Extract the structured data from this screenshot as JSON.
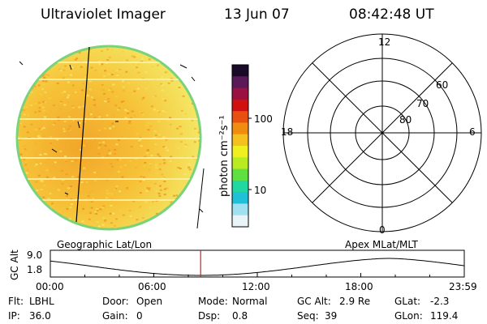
{
  "header": {
    "instrument": "Ultraviolet Imager",
    "date": "13 Jun 07",
    "time": "08:42:48 UT"
  },
  "colorbar": {
    "unit_label": "photon cm⁻²s⁻¹",
    "ticks": [
      "100",
      "10"
    ],
    "colors": [
      "#1a0a2a",
      "#5a1a5a",
      "#9a1040",
      "#d01010",
      "#e85010",
      "#f08c10",
      "#f6c020",
      "#f0f020",
      "#b8ec20",
      "#60e040",
      "#20d8a0",
      "#20c0d8",
      "#a0e0f0",
      "#e8f4f8"
    ]
  },
  "image_panel": {
    "label": "Geographic Lat/Lon",
    "colors": {
      "disk": "#f7c937",
      "limb": "#7ad27a"
    }
  },
  "polar_panel": {
    "label": "Apex MLat/MLT",
    "mlt_labels": {
      "top": "12",
      "left": "18",
      "right": "6",
      "bottom": "0"
    },
    "lat_labels": [
      "60",
      "70",
      "80"
    ]
  },
  "altitude_plot": {
    "ylabel": "GC Alt",
    "yticks": [
      "9.0",
      "1.8"
    ],
    "xticks": [
      "00:00",
      "06:00",
      "12:00",
      "18:00",
      "23:59"
    ],
    "marker_time": "08:42:48",
    "marker_color": "#cc2222"
  },
  "info": {
    "row1": [
      {
        "label": "Flt:",
        "value": "LBHL"
      },
      {
        "label": "Door:",
        "value": "Open"
      },
      {
        "label": "Mode:",
        "value": "Normal"
      },
      {
        "label": "GC Alt:",
        "value": "2.9 Re"
      },
      {
        "label": "GLat:",
        "value": "-2.3"
      }
    ],
    "row2": [
      {
        "label": "IP:",
        "value": "36.0"
      },
      {
        "label": "Gain:",
        "value": "0"
      },
      {
        "label": "Dsp:",
        "value": "0.8"
      },
      {
        "label": "Seq:",
        "value": "39"
      },
      {
        "label": "GLon:",
        "value": "119.4"
      }
    ]
  }
}
